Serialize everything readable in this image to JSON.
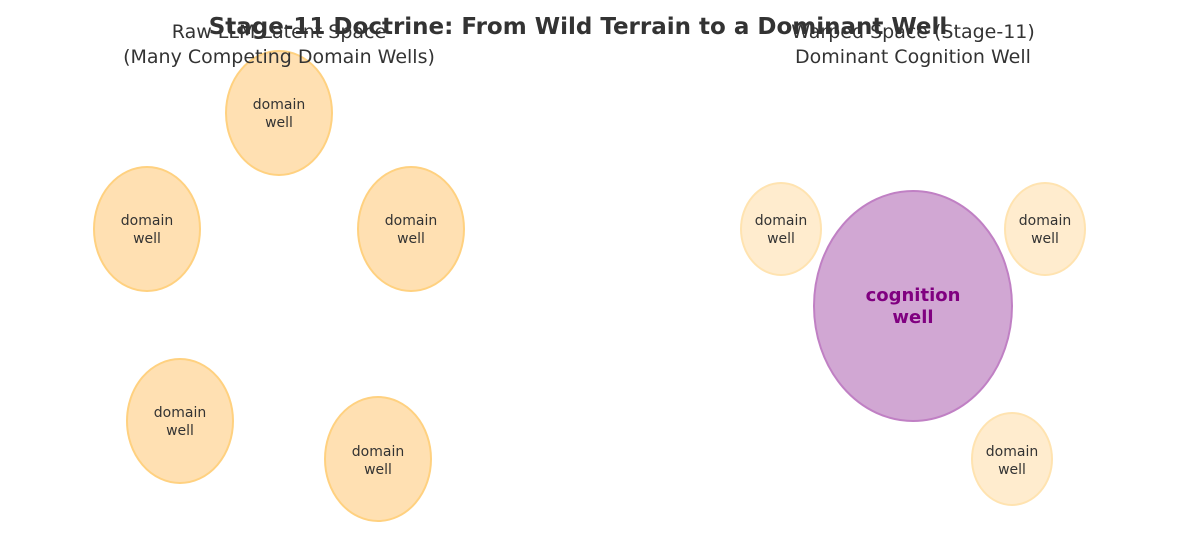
{
  "title": "Stage-11 Doctrine: From Wild Terrain to a Dominant Well",
  "left_panel": {
    "title_line1": "Raw LLM Latent Space",
    "title_line2": "(Many Competing Domain Wells)",
    "wells": [
      {
        "line1": "domain",
        "line2": "well"
      },
      {
        "line1": "domain",
        "line2": "well"
      },
      {
        "line1": "domain",
        "line2": "well"
      },
      {
        "line1": "domain",
        "line2": "well"
      },
      {
        "line1": "domain",
        "line2": "well"
      }
    ]
  },
  "right_panel": {
    "title_line1": "Warped Space (Stage-11)",
    "title_line2": "Dominant Cognition Well",
    "dominant": {
      "line1": "cognition",
      "line2": "well"
    },
    "wells": [
      {
        "line1": "domain",
        "line2": "well"
      },
      {
        "line1": "domain",
        "line2": "well"
      },
      {
        "line1": "domain",
        "line2": "well"
      }
    ]
  },
  "colors": {
    "domain_fill": "#ffe0b2",
    "domain_stroke": "#ffd180",
    "domain_faded_fill": "#ffecce",
    "domain_faded_stroke": "#ffe3b0",
    "cognition_fill": "#d1a7d3",
    "cognition_stroke": "#c080c4",
    "cognition_text": "#800080",
    "text": "#333333"
  }
}
